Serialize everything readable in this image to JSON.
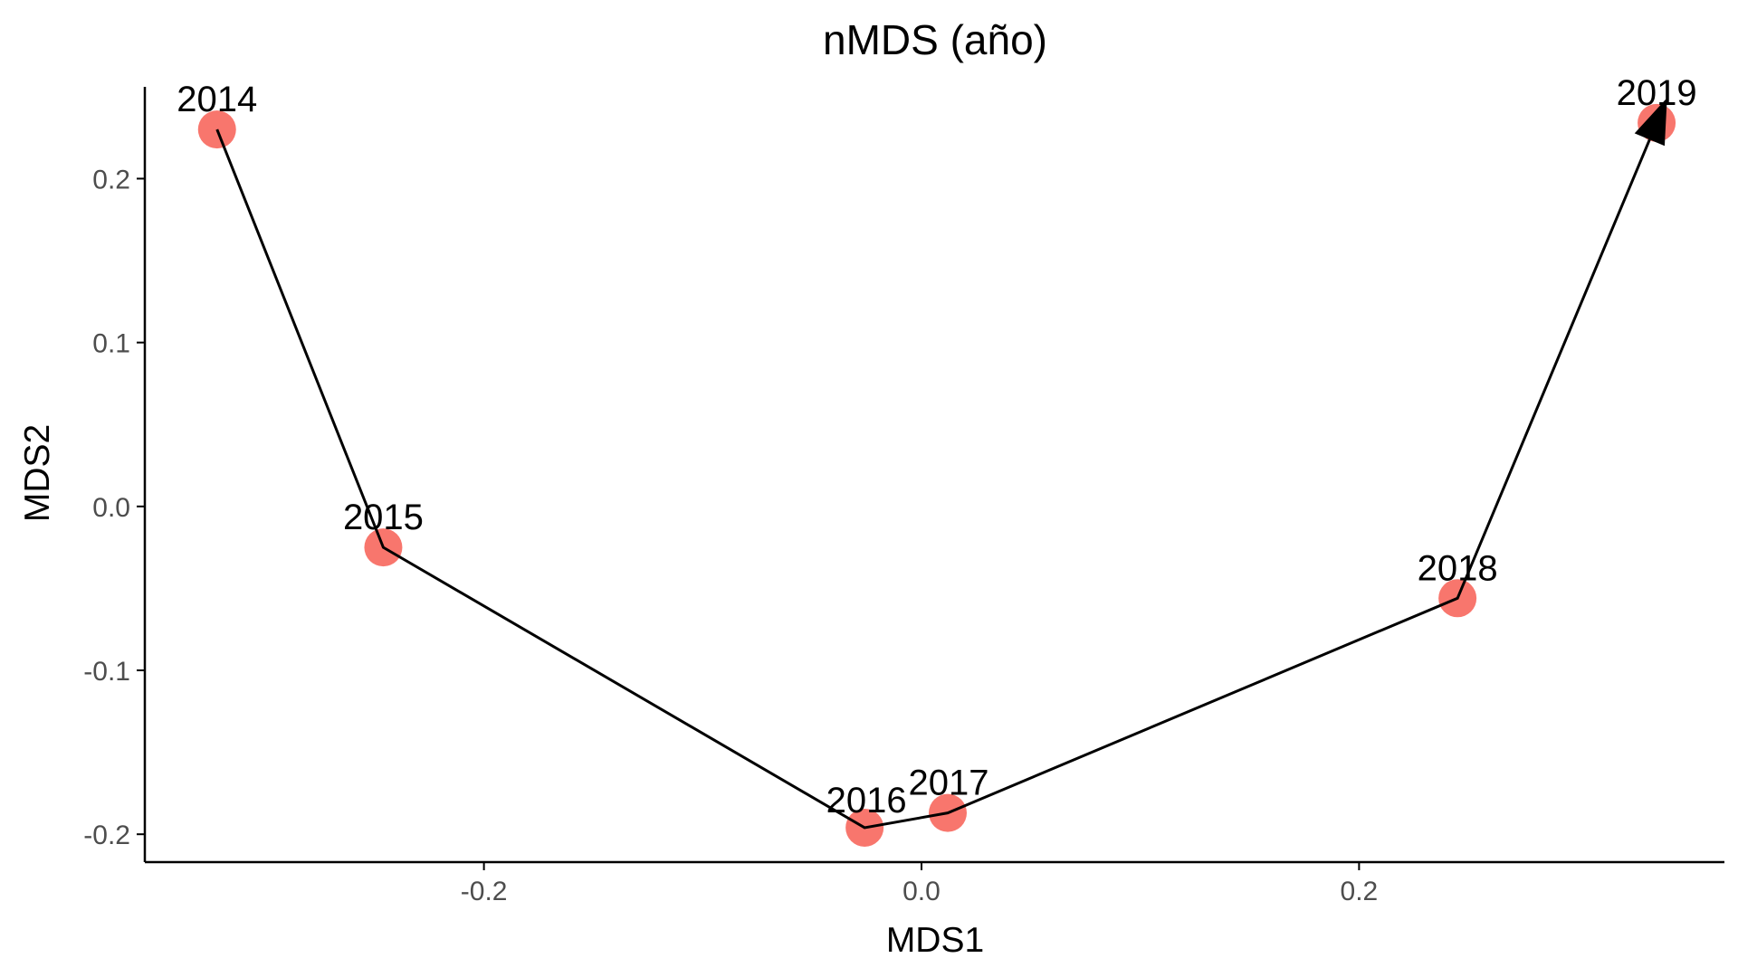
{
  "chart_data": {
    "type": "scatter",
    "title": "nMDS (año)",
    "xlabel": "MDS1",
    "ylabel": "MDS2",
    "xlim": [
      -0.355,
      0.367
    ],
    "ylim": [
      -0.217,
      0.256
    ],
    "x_ticks": [
      -0.2,
      0.0,
      0.2
    ],
    "x_tick_labels": [
      "-0.2",
      "0.0",
      "0.2"
    ],
    "y_ticks": [
      -0.2,
      -0.1,
      0.0,
      0.1,
      0.2
    ],
    "y_tick_labels": [
      "-0.2",
      "-0.1",
      "0.0",
      "0.1",
      "0.2"
    ],
    "grid": false,
    "legend": "none",
    "point_color": "#F8766D",
    "path_color": "#000000",
    "path_arrow_at_end": true,
    "points": [
      {
        "label": "2014",
        "x": -0.322,
        "y": 0.23
      },
      {
        "label": "2015",
        "x": -0.246,
        "y": -0.025
      },
      {
        "label": "2016",
        "x": -0.026,
        "y": -0.196
      },
      {
        "label": "2017",
        "x": 0.012,
        "y": -0.187
      },
      {
        "label": "2018",
        "x": 0.245,
        "y": -0.056
      },
      {
        "label": "2019",
        "x": 0.336,
        "y": 0.234
      }
    ]
  }
}
